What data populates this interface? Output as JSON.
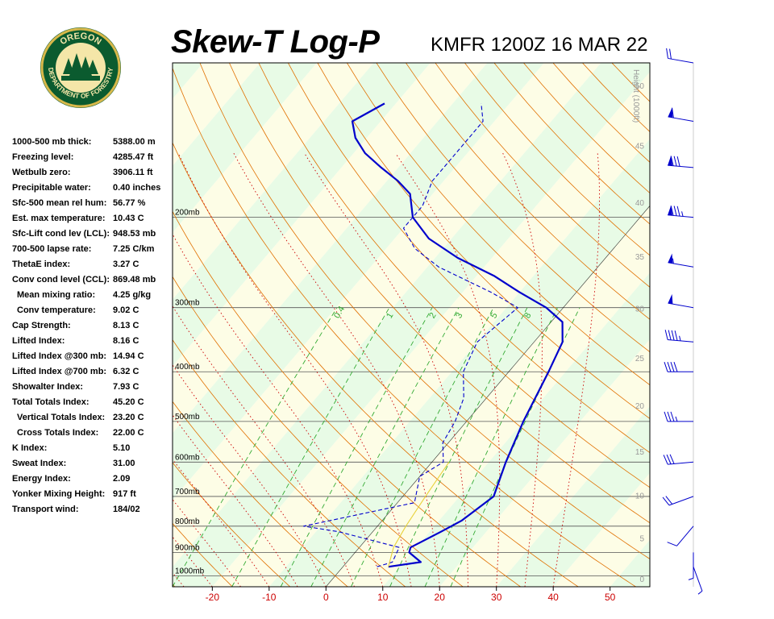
{
  "logo": {
    "text_top": "OREGON",
    "text_bottom": "DEPARTMENT OF FORESTRY"
  },
  "colors": {
    "temperature": "#0000cc",
    "dewpoint": "#0000cc",
    "isotherm": "#000000",
    "dry_adiabat": "#e07000",
    "moist_adiabat": "#cc0000",
    "mixing_ratio": "#33aa33",
    "parcel": "#e8d23c",
    "wind_barb": "#0000cc",
    "band_yellow": "#fdfde6",
    "band_green": "#e8fbe6",
    "isobar": "#555555",
    "axis_tick": "#cc0000",
    "height_tick": "#999999"
  },
  "stats": [
    {
      "label": "1000-500 mb thick:",
      "value": "5388.00 m"
    },
    {
      "label": "Freezing level:",
      "value": "4285.47 ft"
    },
    {
      "label": "Wetbulb zero:",
      "value": "3906.11 ft"
    },
    {
      "label": "Precipitable water:",
      "value": "0.40 inches"
    },
    {
      "label": "Sfc-500 mean rel hum:",
      "value": "56.77 %"
    },
    {
      "label": "Est. max temperature:",
      "value": "10.43 C"
    },
    {
      "label": "Sfc-Lift cond lev (LCL):",
      "value": "948.53 mb"
    },
    {
      "label": "700-500 lapse rate:",
      "value": "7.25 C/km"
    },
    {
      "label": "ThetaE index:",
      "value": "3.27 C"
    },
    {
      "label": "Conv cond level (CCL):",
      "value": "869.48 mb"
    },
    {
      "label": "Mean mixing ratio:",
      "value": "4.25 g/kg",
      "indent": true
    },
    {
      "label": "Conv temperature:",
      "value": "9.02 C",
      "indent": true
    },
    {
      "label": "Cap Strength:",
      "value": "8.13 C"
    },
    {
      "label": "Lifted Index:",
      "value": "8.16 C"
    },
    {
      "label": "Lifted Index @300 mb:",
      "value": "14.94 C"
    },
    {
      "label": "Lifted Index @700 mb:",
      "value": "6.32 C"
    },
    {
      "label": "Showalter Index:",
      "value": "7.93 C"
    },
    {
      "label": "Total Totals Index:",
      "value": "45.20 C"
    },
    {
      "label": "Vertical Totals Index:",
      "value": "23.20 C",
      "indent": true
    },
    {
      "label": "Cross Totals Index:",
      "value": "22.00 C",
      "indent": true
    },
    {
      "label": "K Index:",
      "value": "5.10"
    },
    {
      "label": "Sweat Index:",
      "value": "31.00"
    },
    {
      "label": "Energy Index:",
      "value": "2.09"
    },
    {
      "label": "Yonker Mixing Height:",
      "value": "917 ft"
    },
    {
      "label": "Transport wind:",
      "value": "184/02"
    }
  ],
  "chart_data": {
    "type": "line",
    "title": "Skew-T Log-P",
    "subtitle": "KMFR 1200Z 16 MAR 22",
    "height_axis_label": "Height (1000ft)",
    "x_ticks": [
      -20,
      -10,
      0,
      10,
      20,
      30,
      40,
      50
    ],
    "xlim": [
      -27,
      57
    ],
    "pressure_levels": [
      {
        "p": 200,
        "label": "200mb"
      },
      {
        "p": 300,
        "label": "300mb"
      },
      {
        "p": 400,
        "label": "400mb"
      },
      {
        "p": 500,
        "label": "500mb"
      },
      {
        "p": 600,
        "label": "600mb"
      },
      {
        "p": 700,
        "label": "700mb"
      },
      {
        "p": 800,
        "label": "800mb"
      },
      {
        "p": 900,
        "label": "900mb"
      },
      {
        "p": 1000,
        "label": "1000mb"
      }
    ],
    "plim_mb": [
      100,
      1050
    ],
    "height_ticks_kft": [
      0,
      5,
      10,
      15,
      20,
      25,
      30,
      35,
      40,
      45,
      50
    ],
    "mixing_ratio_labels": [
      "0.4",
      "1",
      "2",
      "3",
      "5",
      "8"
    ],
    "series": [
      {
        "key": "temperature",
        "style": "solid",
        "x": [
          8,
          13,
          9.5,
          9,
          12,
          14,
          16,
          13,
          10,
          7,
          5,
          2,
          -3,
          -10,
          -17,
          -26,
          -34,
          -40,
          -44,
          -48,
          -53,
          -58,
          -62,
          -65,
          -62
        ],
        "p": [
          960,
          940,
          900,
          880,
          820,
          780,
          700,
          600,
          500,
          400,
          350,
          320,
          300,
          280,
          260,
          240,
          220,
          200,
          180,
          170,
          160,
          150,
          140,
          130,
          120
        ]
      },
      {
        "key": "dewpoint",
        "style": "dashed",
        "x": [
          6,
          8,
          7,
          -6,
          -13,
          3,
          0,
          2,
          -1,
          -2,
          -4,
          -8,
          -10,
          -8,
          -15,
          -28,
          -35,
          -40,
          -40,
          -42,
          -42,
          -42,
          -45
        ],
        "p": [
          960,
          940,
          880,
          820,
          800,
          720,
          640,
          600,
          550,
          500,
          450,
          400,
          350,
          300,
          280,
          250,
          230,
          210,
          190,
          170,
          150,
          130,
          120
        ]
      },
      {
        "key": "parcel",
        "style": "solid",
        "x": [
          8,
          6,
          5,
          4,
          3
        ],
        "p": [
          960,
          880,
          800,
          700,
          600
        ]
      }
    ],
    "wind_profile": [
      {
        "p": 100,
        "dir": 280,
        "spd": 20
      },
      {
        "p": 130,
        "dir": 280,
        "spd": 60
      },
      {
        "p": 160,
        "dir": 275,
        "spd": 80
      },
      {
        "p": 200,
        "dir": 275,
        "spd": 85
      },
      {
        "p": 250,
        "dir": 280,
        "spd": 55
      },
      {
        "p": 300,
        "dir": 280,
        "spd": 50
      },
      {
        "p": 350,
        "dir": 275,
        "spd": 45
      },
      {
        "p": 400,
        "dir": 270,
        "spd": 40
      },
      {
        "p": 500,
        "dir": 270,
        "spd": 35
      },
      {
        "p": 600,
        "dir": 265,
        "spd": 30
      },
      {
        "p": 700,
        "dir": 250,
        "spd": 20
      },
      {
        "p": 800,
        "dir": 220,
        "spd": 10
      },
      {
        "p": 900,
        "dir": 180,
        "spd": 5
      },
      {
        "p": 960,
        "dir": 160,
        "spd": 5
      }
    ]
  }
}
